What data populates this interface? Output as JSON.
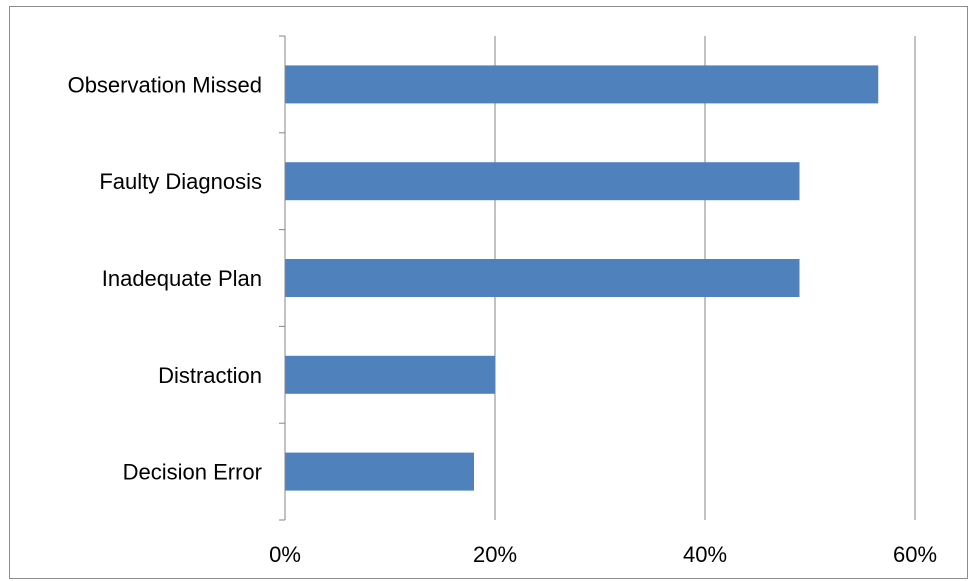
{
  "chart_data": {
    "type": "bar",
    "orientation": "horizontal",
    "categories": [
      "Observation Missed",
      "Faulty Diagnosis",
      "Inadequate Plan",
      "Distraction",
      "Decision Error"
    ],
    "values": [
      56.5,
      49,
      49,
      20,
      18
    ],
    "value_unit": "%",
    "xlim": [
      0,
      60
    ],
    "xticks": [
      0,
      20,
      40,
      60
    ],
    "xtick_labels": [
      "0%",
      "20%",
      "40%",
      "60%"
    ],
    "title": "",
    "xlabel": "",
    "ylabel": "",
    "grid": "vertical gridlines",
    "legend": "none",
    "colors": {
      "bar": "#4f81bd",
      "grid": "#868686",
      "axis": "#868686",
      "frame": "#8c8c8c"
    }
  }
}
